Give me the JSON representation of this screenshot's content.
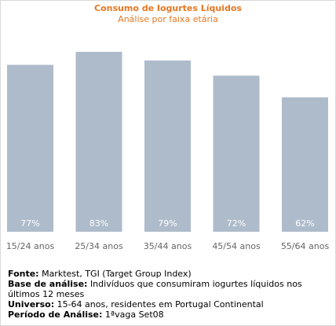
{
  "title": "Consumo de Iogurtes Líquidos",
  "subtitle": "Análise por faixa etária",
  "colors": {
    "accent": "#e87722",
    "bar": "#aebbcb",
    "bar_label": "#ffffff",
    "axis_label": "#666666"
  },
  "chart_data": {
    "type": "bar",
    "title": "Consumo de Iogurtes Líquidos",
    "subtitle": "Análise por faixa etária",
    "categories": [
      "15/24 anos",
      "25/34 anos",
      "35/44 anos",
      "45/54 anos",
      "55/64 anos"
    ],
    "values": [
      77,
      83,
      79,
      72,
      62
    ],
    "value_labels": [
      "77%",
      "83%",
      "79%",
      "72%",
      "62%"
    ],
    "unit": "%",
    "grid": false,
    "legend": "none"
  },
  "footer": {
    "fonte_label": "Fonte:",
    "fonte_value": "Marktest, TGI (Target Group Index)",
    "base_label": "Base de análise:",
    "base_value": "Indivíduos que consumiram iogurtes líquidos nos últimos 12 meses",
    "universo_label": "Universo:",
    "universo_value": "15-64 anos, residentes em Portugal Continental",
    "periodo_label": "Período de Análise:",
    "periodo_value": "1ªvaga Set08"
  }
}
